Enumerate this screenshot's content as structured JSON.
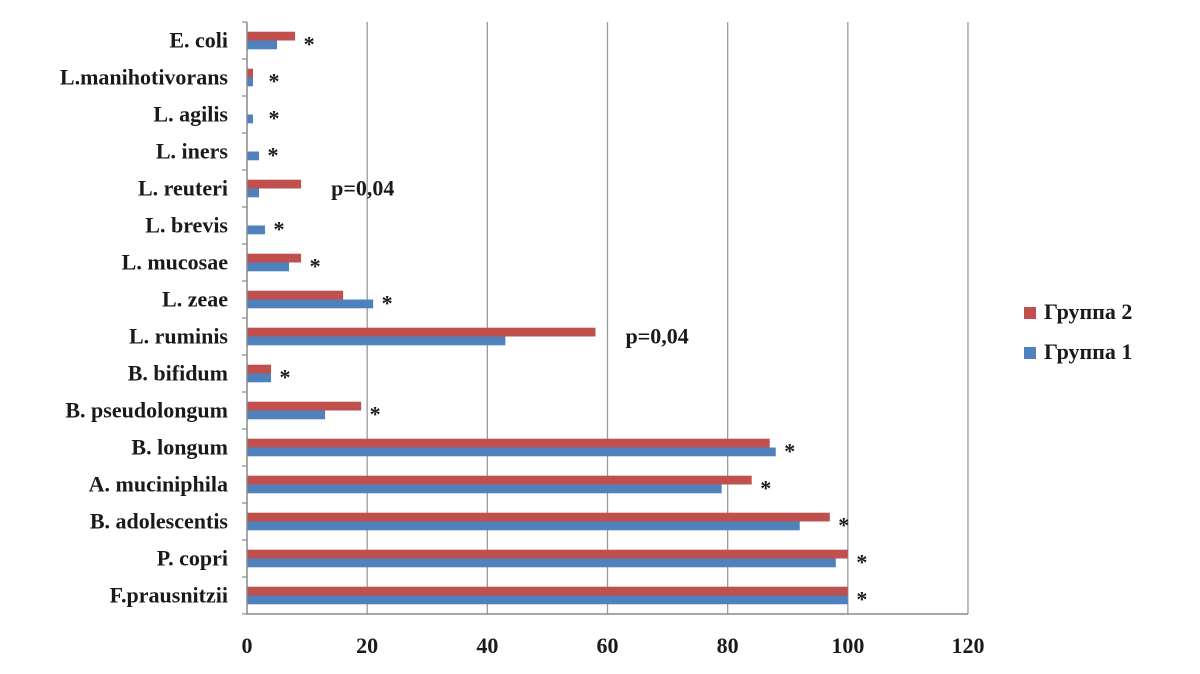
{
  "chart_data": {
    "type": "bar",
    "orientation": "horizontal",
    "categories": [
      "E. coli",
      "L.manihotivorans",
      "L. agilis",
      "L. iners",
      "L. reuteri",
      "L. brevis",
      "L. mucosae",
      "L. zeae",
      "L. ruminis",
      "B. bifidum",
      "B. pseudolongum",
      "B. longum",
      "A. muciniphila",
      "B. adolescentis",
      "P. copri",
      "F.prausnitzii"
    ],
    "series": [
      {
        "name": "Группа 2",
        "color": "#C0504D",
        "values": [
          8,
          1,
          0,
          0,
          9,
          0,
          9,
          16,
          58,
          4,
          19,
          87,
          84,
          97,
          100,
          100
        ]
      },
      {
        "name": "Группа 1",
        "color": "#4F81BD",
        "values": [
          5,
          1,
          1,
          2,
          2,
          3,
          7,
          21,
          43,
          4,
          13,
          88,
          79,
          92,
          98,
          100
        ]
      }
    ],
    "annotations": [
      "*",
      "*",
      "*",
      "*",
      "p=0,04",
      "*",
      "*",
      "*",
      "p=0,04",
      "*",
      "*",
      "*",
      "*",
      "*",
      "*",
      "*"
    ],
    "x_ticks": [
      "0",
      "20",
      "40",
      "60",
      "80",
      "100",
      "120"
    ],
    "xlim": [
      0,
      120
    ],
    "grid": "vertical",
    "legend_position": "right",
    "title": "",
    "xlabel": "",
    "ylabel": ""
  }
}
